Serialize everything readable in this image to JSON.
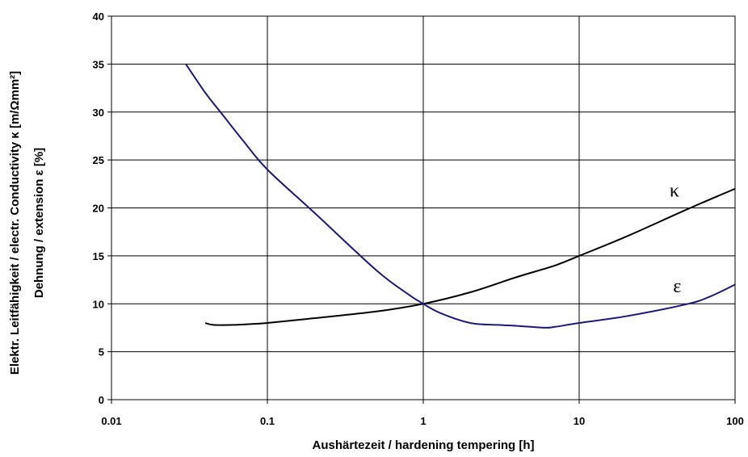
{
  "chart_data": {
    "type": "line",
    "title": "",
    "xlabel": "Aushärtezeit / hardening tempering  [h]",
    "ylabel": "Elektr. Leitfähigkeit / electr. Conductivity κ [m/Ωmm²]",
    "ylabel2": "Dehnung / extension ε  [%]",
    "x_scale": "log",
    "xlim": [
      0.01,
      100
    ],
    "ylim": [
      0,
      40
    ],
    "x_ticks": [
      "0.01",
      "0.1",
      "1",
      "10",
      "100"
    ],
    "y_ticks": [
      "0",
      "5",
      "10",
      "15",
      "20",
      "25",
      "30",
      "35",
      "40"
    ],
    "grid": "vertical at decades, horizontal every 5",
    "legend": "none",
    "series": [
      {
        "name": "κ",
        "color": "#000000",
        "points": [
          [
            0.04,
            8.0
          ],
          [
            0.045,
            7.8
          ],
          [
            0.06,
            7.8
          ],
          [
            0.08,
            7.9
          ],
          [
            0.1,
            8.0
          ],
          [
            0.2,
            8.5
          ],
          [
            0.5,
            9.2
          ],
          [
            1,
            10.0
          ],
          [
            2,
            11.2
          ],
          [
            4,
            12.8
          ],
          [
            7,
            14.0
          ],
          [
            10,
            15.0
          ],
          [
            20,
            17.0
          ],
          [
            50,
            19.9
          ],
          [
            100,
            22.0
          ]
        ]
      },
      {
        "name": "ε",
        "color": "#1a1a7a",
        "points": [
          [
            0.03,
            35.0
          ],
          [
            0.04,
            32.0
          ],
          [
            0.05,
            30.0
          ],
          [
            0.07,
            27.0
          ],
          [
            0.1,
            24.0
          ],
          [
            0.2,
            19.5
          ],
          [
            0.5,
            13.5
          ],
          [
            0.8,
            11.0
          ],
          [
            1,
            10.0
          ],
          [
            1.3,
            9.0
          ],
          [
            2,
            8.0
          ],
          [
            3,
            7.8
          ],
          [
            4,
            7.7
          ],
          [
            6,
            7.5
          ],
          [
            7,
            7.6
          ],
          [
            10,
            8.0
          ],
          [
            20,
            8.7
          ],
          [
            50,
            10.0
          ],
          [
            70,
            10.8
          ],
          [
            100,
            12.0
          ]
        ]
      }
    ]
  }
}
